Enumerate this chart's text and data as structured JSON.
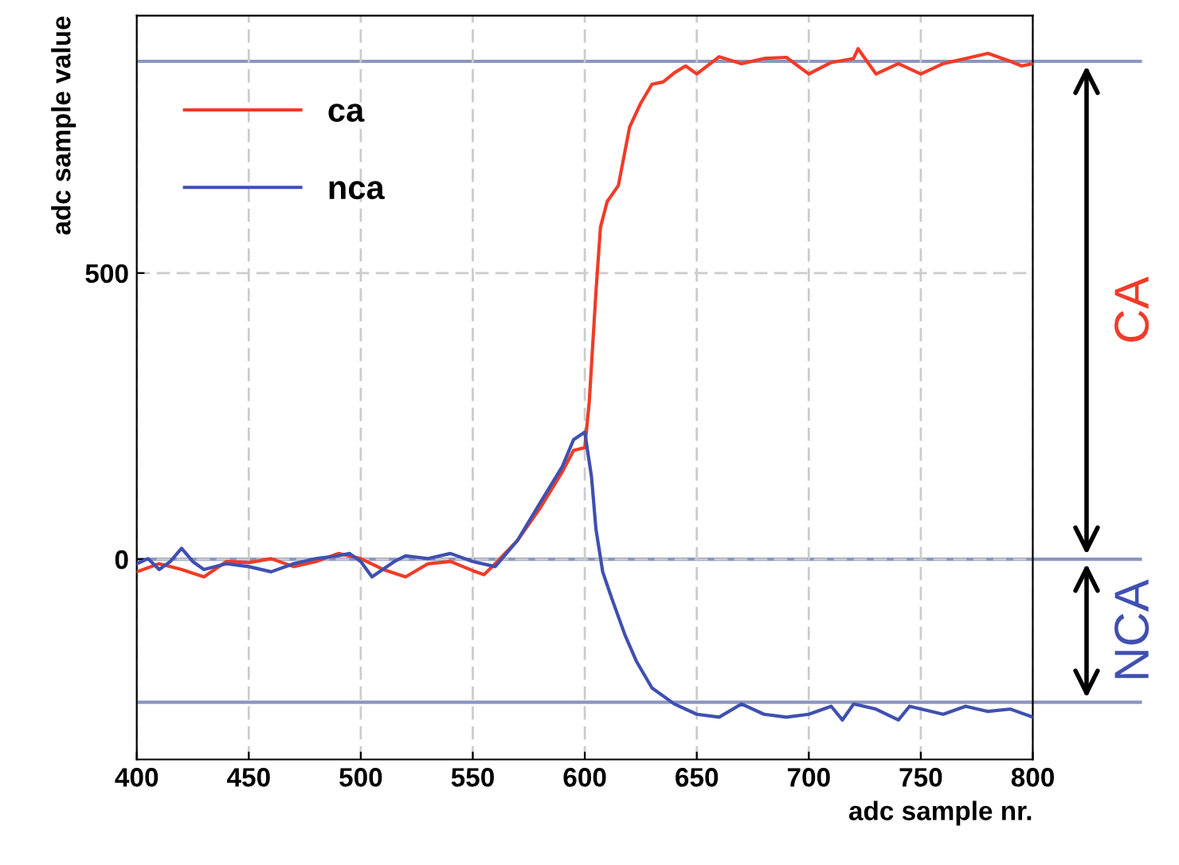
{
  "chart_data": {
    "type": "line",
    "xlabel": "adc sample nr.",
    "ylabel": "adc sample value",
    "xlim": [
      400,
      800
    ],
    "ylim": [
      -350,
      950
    ],
    "xticks": [
      400,
      450,
      500,
      550,
      600,
      650,
      700,
      750,
      800
    ],
    "yticks": [
      0,
      500
    ],
    "grid": true,
    "legend": "top left",
    "line_style": "solid",
    "marker": "none",
    "series": [
      {
        "name": "ca",
        "color": "#f03c28",
        "x": [
          400,
          410,
          420,
          430,
          440,
          450,
          460,
          470,
          480,
          490,
          500,
          510,
          520,
          530,
          540,
          550,
          555,
          560,
          570,
          580,
          590,
          595,
          600,
          602,
          605,
          607,
          610,
          615,
          620,
          625,
          630,
          635,
          640,
          645,
          650,
          660,
          670,
          680,
          690,
          700,
          710,
          720,
          722,
          730,
          740,
          750,
          760,
          770,
          780,
          790,
          795,
          800
        ],
        "values": [
          -22,
          -8,
          -18,
          -31,
          -4,
          -6,
          1,
          -13,
          -4,
          10,
          1,
          -18,
          -31,
          -8,
          -4,
          -20,
          -27,
          -8,
          33,
          89,
          153,
          190,
          195,
          275,
          468,
          580,
          625,
          653,
          755,
          797,
          830,
          834,
          850,
          862,
          848,
          878,
          866,
          875,
          877,
          848,
          868,
          875,
          892,
          848,
          866,
          848,
          866,
          875,
          884,
          870,
          862,
          866
        ]
      },
      {
        "name": "nca",
        "color": "#4050b0",
        "x": [
          400,
          405,
          410,
          415,
          420,
          425,
          430,
          440,
          450,
          460,
          470,
          480,
          490,
          495,
          500,
          505,
          515,
          520,
          530,
          540,
          550,
          560,
          570,
          580,
          590,
          595,
          600,
          603,
          605,
          608,
          612,
          618,
          623,
          630,
          640,
          650,
          660,
          670,
          680,
          690,
          700,
          710,
          715,
          720,
          730,
          740,
          745,
          760,
          770,
          780,
          790,
          800
        ],
        "values": [
          -8,
          1,
          -18,
          -4,
          19,
          -4,
          -18,
          -8,
          -13,
          -22,
          -8,
          1,
          6,
          10,
          -4,
          -31,
          -4,
          6,
          1,
          10,
          -4,
          -13,
          33,
          98,
          162,
          209,
          222,
          144,
          52,
          -22,
          -68,
          -133,
          -178,
          -225,
          -253,
          -271,
          -276,
          -253,
          -271,
          -276,
          -271,
          -257,
          -281,
          -253,
          -262,
          -281,
          -257,
          -271,
          -257,
          -266,
          -262,
          -276
        ]
      }
    ],
    "annotations": [
      "CA",
      "NCA"
    ],
    "ref_lines": [
      {
        "axis": "y",
        "value": 870,
        "color": "#8c96c0"
      },
      {
        "axis": "y",
        "value": 0,
        "color": "#8c96c0"
      },
      {
        "axis": "y",
        "value": -250,
        "color": "#8c96c0"
      }
    ]
  }
}
